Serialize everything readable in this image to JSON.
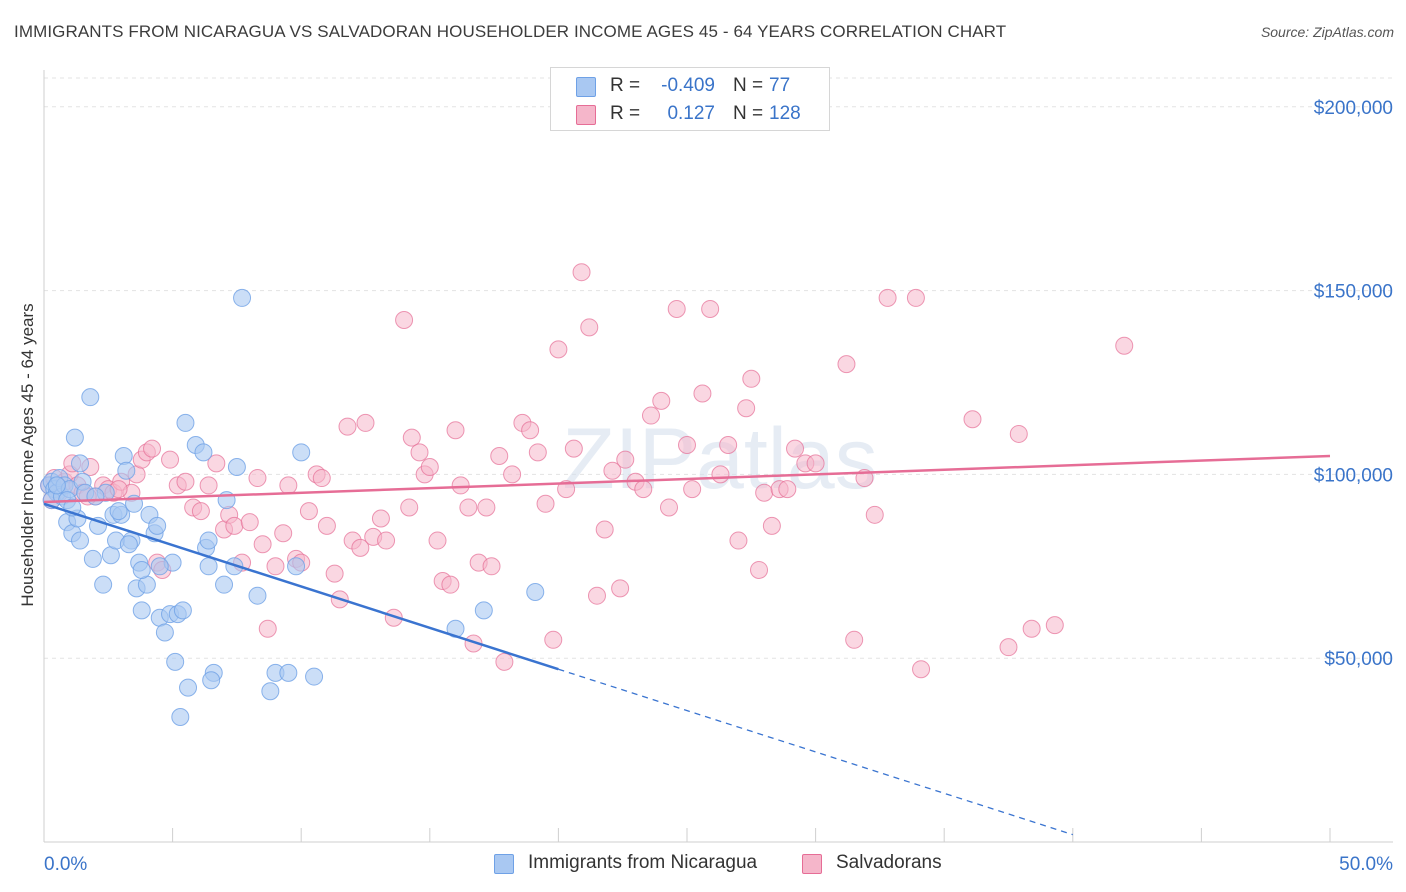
{
  "header": {
    "title": "IMMIGRANTS FROM NICARAGUA VS SALVADORAN HOUSEHOLDER INCOME AGES 45 - 64 YEARS CORRELATION CHART",
    "source": "Source: ZipAtlas.com"
  },
  "watermark": "ZIPatlas",
  "legend": {
    "rows": [
      {
        "r_label": "R =",
        "r_value": "-0.409",
        "n_label": "N =",
        "n_value": "77",
        "color": "#a9c8f2"
      },
      {
        "r_label": "R =",
        "r_value": "0.127",
        "n_label": "N =",
        "n_value": "128",
        "color": "#f5b6ca"
      }
    ]
  },
  "bottom_legend": {
    "items": [
      {
        "label": "Immigrants from Nicaragua",
        "color": "#a9c8f2"
      },
      {
        "label": "Salvadorans",
        "color": "#f5b6ca"
      }
    ]
  },
  "chart_data": {
    "type": "scatter",
    "title": "IMMIGRANTS FROM NICARAGUA VS SALVADORAN HOUSEHOLDER INCOME AGES 45 - 64 YEARS CORRELATION CHART",
    "xlabel": "",
    "ylabel": "Householder Income Ages 45 - 64 years",
    "xlim": [
      0,
      50
    ],
    "ylim": [
      0,
      210000
    ],
    "x_tick_labels": [
      "0.0%",
      "50.0%"
    ],
    "y_ticks": [
      50000,
      100000,
      150000,
      200000
    ],
    "y_tick_labels": [
      "$50,000",
      "$100,000",
      "$150,000",
      "$200,000"
    ],
    "grid": true,
    "legend_position": "top-center",
    "series": [
      {
        "name": "Immigrants from Nicaragua",
        "color": "#6fa1e6",
        "fill": "#a9c8f2",
        "r": -0.409,
        "n": 77,
        "trend": {
          "x0": 0,
          "y0": 92000,
          "x1": 20,
          "y1": 47000,
          "dash_to_x": 40,
          "dash_to_y": 2000
        },
        "points": [
          [
            0.2,
            97000
          ],
          [
            0.3,
            98000
          ],
          [
            0.4,
            96000
          ],
          [
            0.5,
            95000
          ],
          [
            0.3,
            93000
          ],
          [
            0.6,
            99000
          ],
          [
            0.7,
            94000
          ],
          [
            0.8,
            97000
          ],
          [
            1.0,
            96000
          ],
          [
            0.9,
            87000
          ],
          [
            1.1,
            84000
          ],
          [
            1.2,
            110000
          ],
          [
            1.4,
            103000
          ],
          [
            1.5,
            98000
          ],
          [
            1.6,
            95000
          ],
          [
            1.8,
            121000
          ],
          [
            1.3,
            88000
          ],
          [
            1.4,
            82000
          ],
          [
            1.9,
            77000
          ],
          [
            2.1,
            86000
          ],
          [
            2.3,
            70000
          ],
          [
            2.6,
            78000
          ],
          [
            2.4,
            95000
          ],
          [
            2.7,
            89000
          ],
          [
            2.8,
            82000
          ],
          [
            3.0,
            89000
          ],
          [
            3.1,
            105000
          ],
          [
            3.2,
            101000
          ],
          [
            3.4,
            82000
          ],
          [
            3.5,
            92000
          ],
          [
            3.3,
            81000
          ],
          [
            3.6,
            69000
          ],
          [
            3.8,
            63000
          ],
          [
            3.7,
            76000
          ],
          [
            4.0,
            70000
          ],
          [
            4.1,
            89000
          ],
          [
            4.3,
            84000
          ],
          [
            4.4,
            86000
          ],
          [
            4.5,
            61000
          ],
          [
            4.7,
            57000
          ],
          [
            4.9,
            62000
          ],
          [
            5.0,
            76000
          ],
          [
            5.2,
            62000
          ],
          [
            5.4,
            63000
          ],
          [
            5.1,
            49000
          ],
          [
            5.6,
            42000
          ],
          [
            5.3,
            34000
          ],
          [
            5.5,
            114000
          ],
          [
            5.9,
            108000
          ],
          [
            6.2,
            106000
          ],
          [
            6.3,
            80000
          ],
          [
            6.4,
            82000
          ],
          [
            6.6,
            46000
          ],
          [
            6.5,
            44000
          ],
          [
            7.0,
            70000
          ],
          [
            7.1,
            93000
          ],
          [
            7.4,
            75000
          ],
          [
            7.5,
            102000
          ],
          [
            7.7,
            148000
          ],
          [
            8.3,
            67000
          ],
          [
            8.8,
            41000
          ],
          [
            9.0,
            46000
          ],
          [
            9.5,
            46000
          ],
          [
            9.8,
            75000
          ],
          [
            10.0,
            106000
          ],
          [
            10.5,
            45000
          ],
          [
            4.5,
            75000
          ],
          [
            0.9,
            93000
          ],
          [
            1.1,
            91000
          ],
          [
            2.0,
            94000
          ],
          [
            2.9,
            90000
          ],
          [
            16.0,
            58000
          ],
          [
            17.1,
            63000
          ],
          [
            19.1,
            68000
          ],
          [
            6.4,
            75000
          ],
          [
            3.8,
            74000
          ],
          [
            0.5,
            97000
          ]
        ]
      },
      {
        "name": "Salvadorans",
        "color": "#e66d96",
        "fill": "#f5b6ca",
        "r": 0.127,
        "n": 128,
        "trend": {
          "x0": 0,
          "y0": 92500,
          "x1": 50,
          "y1": 105000
        },
        "points": [
          [
            0.2,
            97000
          ],
          [
            0.4,
            99000
          ],
          [
            0.6,
            95000
          ],
          [
            0.8,
            98000
          ],
          [
            1.0,
            100000
          ],
          [
            1.1,
            103000
          ],
          [
            1.3,
            97000
          ],
          [
            1.5,
            95000
          ],
          [
            1.8,
            102000
          ],
          [
            2.0,
            94000
          ],
          [
            2.3,
            97000
          ],
          [
            2.5,
            96000
          ],
          [
            2.7,
            95000
          ],
          [
            3.0,
            98000
          ],
          [
            3.4,
            95000
          ],
          [
            3.6,
            100000
          ],
          [
            3.8,
            104000
          ],
          [
            4.0,
            106000
          ],
          [
            4.2,
            107000
          ],
          [
            4.4,
            76000
          ],
          [
            4.6,
            74000
          ],
          [
            4.9,
            104000
          ],
          [
            5.2,
            97000
          ],
          [
            5.5,
            98000
          ],
          [
            5.8,
            91000
          ],
          [
            6.1,
            90000
          ],
          [
            6.4,
            97000
          ],
          [
            6.7,
            103000
          ],
          [
            7.0,
            85000
          ],
          [
            7.2,
            89000
          ],
          [
            7.4,
            86000
          ],
          [
            7.7,
            76000
          ],
          [
            8.0,
            87000
          ],
          [
            8.3,
            99000
          ],
          [
            8.5,
            81000
          ],
          [
            8.7,
            58000
          ],
          [
            9.0,
            75000
          ],
          [
            9.3,
            84000
          ],
          [
            9.5,
            97000
          ],
          [
            9.8,
            77000
          ],
          [
            10.0,
            76000
          ],
          [
            10.3,
            90000
          ],
          [
            10.6,
            100000
          ],
          [
            10.8,
            99000
          ],
          [
            11.0,
            86000
          ],
          [
            11.3,
            73000
          ],
          [
            11.5,
            66000
          ],
          [
            11.8,
            113000
          ],
          [
            12.0,
            82000
          ],
          [
            12.3,
            80000
          ],
          [
            12.5,
            114000
          ],
          [
            12.8,
            83000
          ],
          [
            13.1,
            88000
          ],
          [
            13.3,
            82000
          ],
          [
            13.6,
            61000
          ],
          [
            14.0,
            142000
          ],
          [
            14.3,
            110000
          ],
          [
            14.6,
            106000
          ],
          [
            14.8,
            100000
          ],
          [
            15.0,
            102000
          ],
          [
            15.3,
            82000
          ],
          [
            15.5,
            71000
          ],
          [
            15.8,
            70000
          ],
          [
            16.0,
            112000
          ],
          [
            16.2,
            97000
          ],
          [
            16.5,
            91000
          ],
          [
            16.7,
            54000
          ],
          [
            16.9,
            76000
          ],
          [
            17.2,
            91000
          ],
          [
            17.4,
            75000
          ],
          [
            17.7,
            105000
          ],
          [
            17.9,
            49000
          ],
          [
            18.2,
            100000
          ],
          [
            18.6,
            114000
          ],
          [
            18.9,
            112000
          ],
          [
            19.2,
            106000
          ],
          [
            19.5,
            92000
          ],
          [
            19.8,
            55000
          ],
          [
            20.0,
            134000
          ],
          [
            20.3,
            96000
          ],
          [
            20.6,
            107000
          ],
          [
            20.9,
            155000
          ],
          [
            21.2,
            140000
          ],
          [
            21.5,
            67000
          ],
          [
            21.8,
            85000
          ],
          [
            22.1,
            101000
          ],
          [
            22.4,
            69000
          ],
          [
            22.6,
            104000
          ],
          [
            23.0,
            98000
          ],
          [
            23.3,
            96000
          ],
          [
            23.6,
            116000
          ],
          [
            24.0,
            120000
          ],
          [
            24.3,
            91000
          ],
          [
            24.6,
            145000
          ],
          [
            25.0,
            108000
          ],
          [
            25.2,
            96000
          ],
          [
            25.6,
            122000
          ],
          [
            25.9,
            145000
          ],
          [
            26.3,
            100000
          ],
          [
            26.6,
            108000
          ],
          [
            27.0,
            82000
          ],
          [
            27.3,
            118000
          ],
          [
            27.5,
            126000
          ],
          [
            27.8,
            74000
          ],
          [
            28.0,
            95000
          ],
          [
            28.3,
            86000
          ],
          [
            28.6,
            96000
          ],
          [
            28.9,
            96000
          ],
          [
            29.2,
            107000
          ],
          [
            29.6,
            103000
          ],
          [
            30.0,
            103000
          ],
          [
            31.2,
            130000
          ],
          [
            31.5,
            55000
          ],
          [
            31.9,
            99000
          ],
          [
            32.3,
            89000
          ],
          [
            32.8,
            148000
          ],
          [
            33.9,
            148000
          ],
          [
            34.1,
            47000
          ],
          [
            36.1,
            115000
          ],
          [
            37.5,
            53000
          ],
          [
            37.9,
            111000
          ],
          [
            38.4,
            58000
          ],
          [
            39.3,
            59000
          ],
          [
            0.3,
            93000
          ],
          [
            1.7,
            94000
          ],
          [
            2.9,
            96000
          ],
          [
            42.0,
            135000
          ],
          [
            14.2,
            91000
          ]
        ]
      }
    ]
  }
}
